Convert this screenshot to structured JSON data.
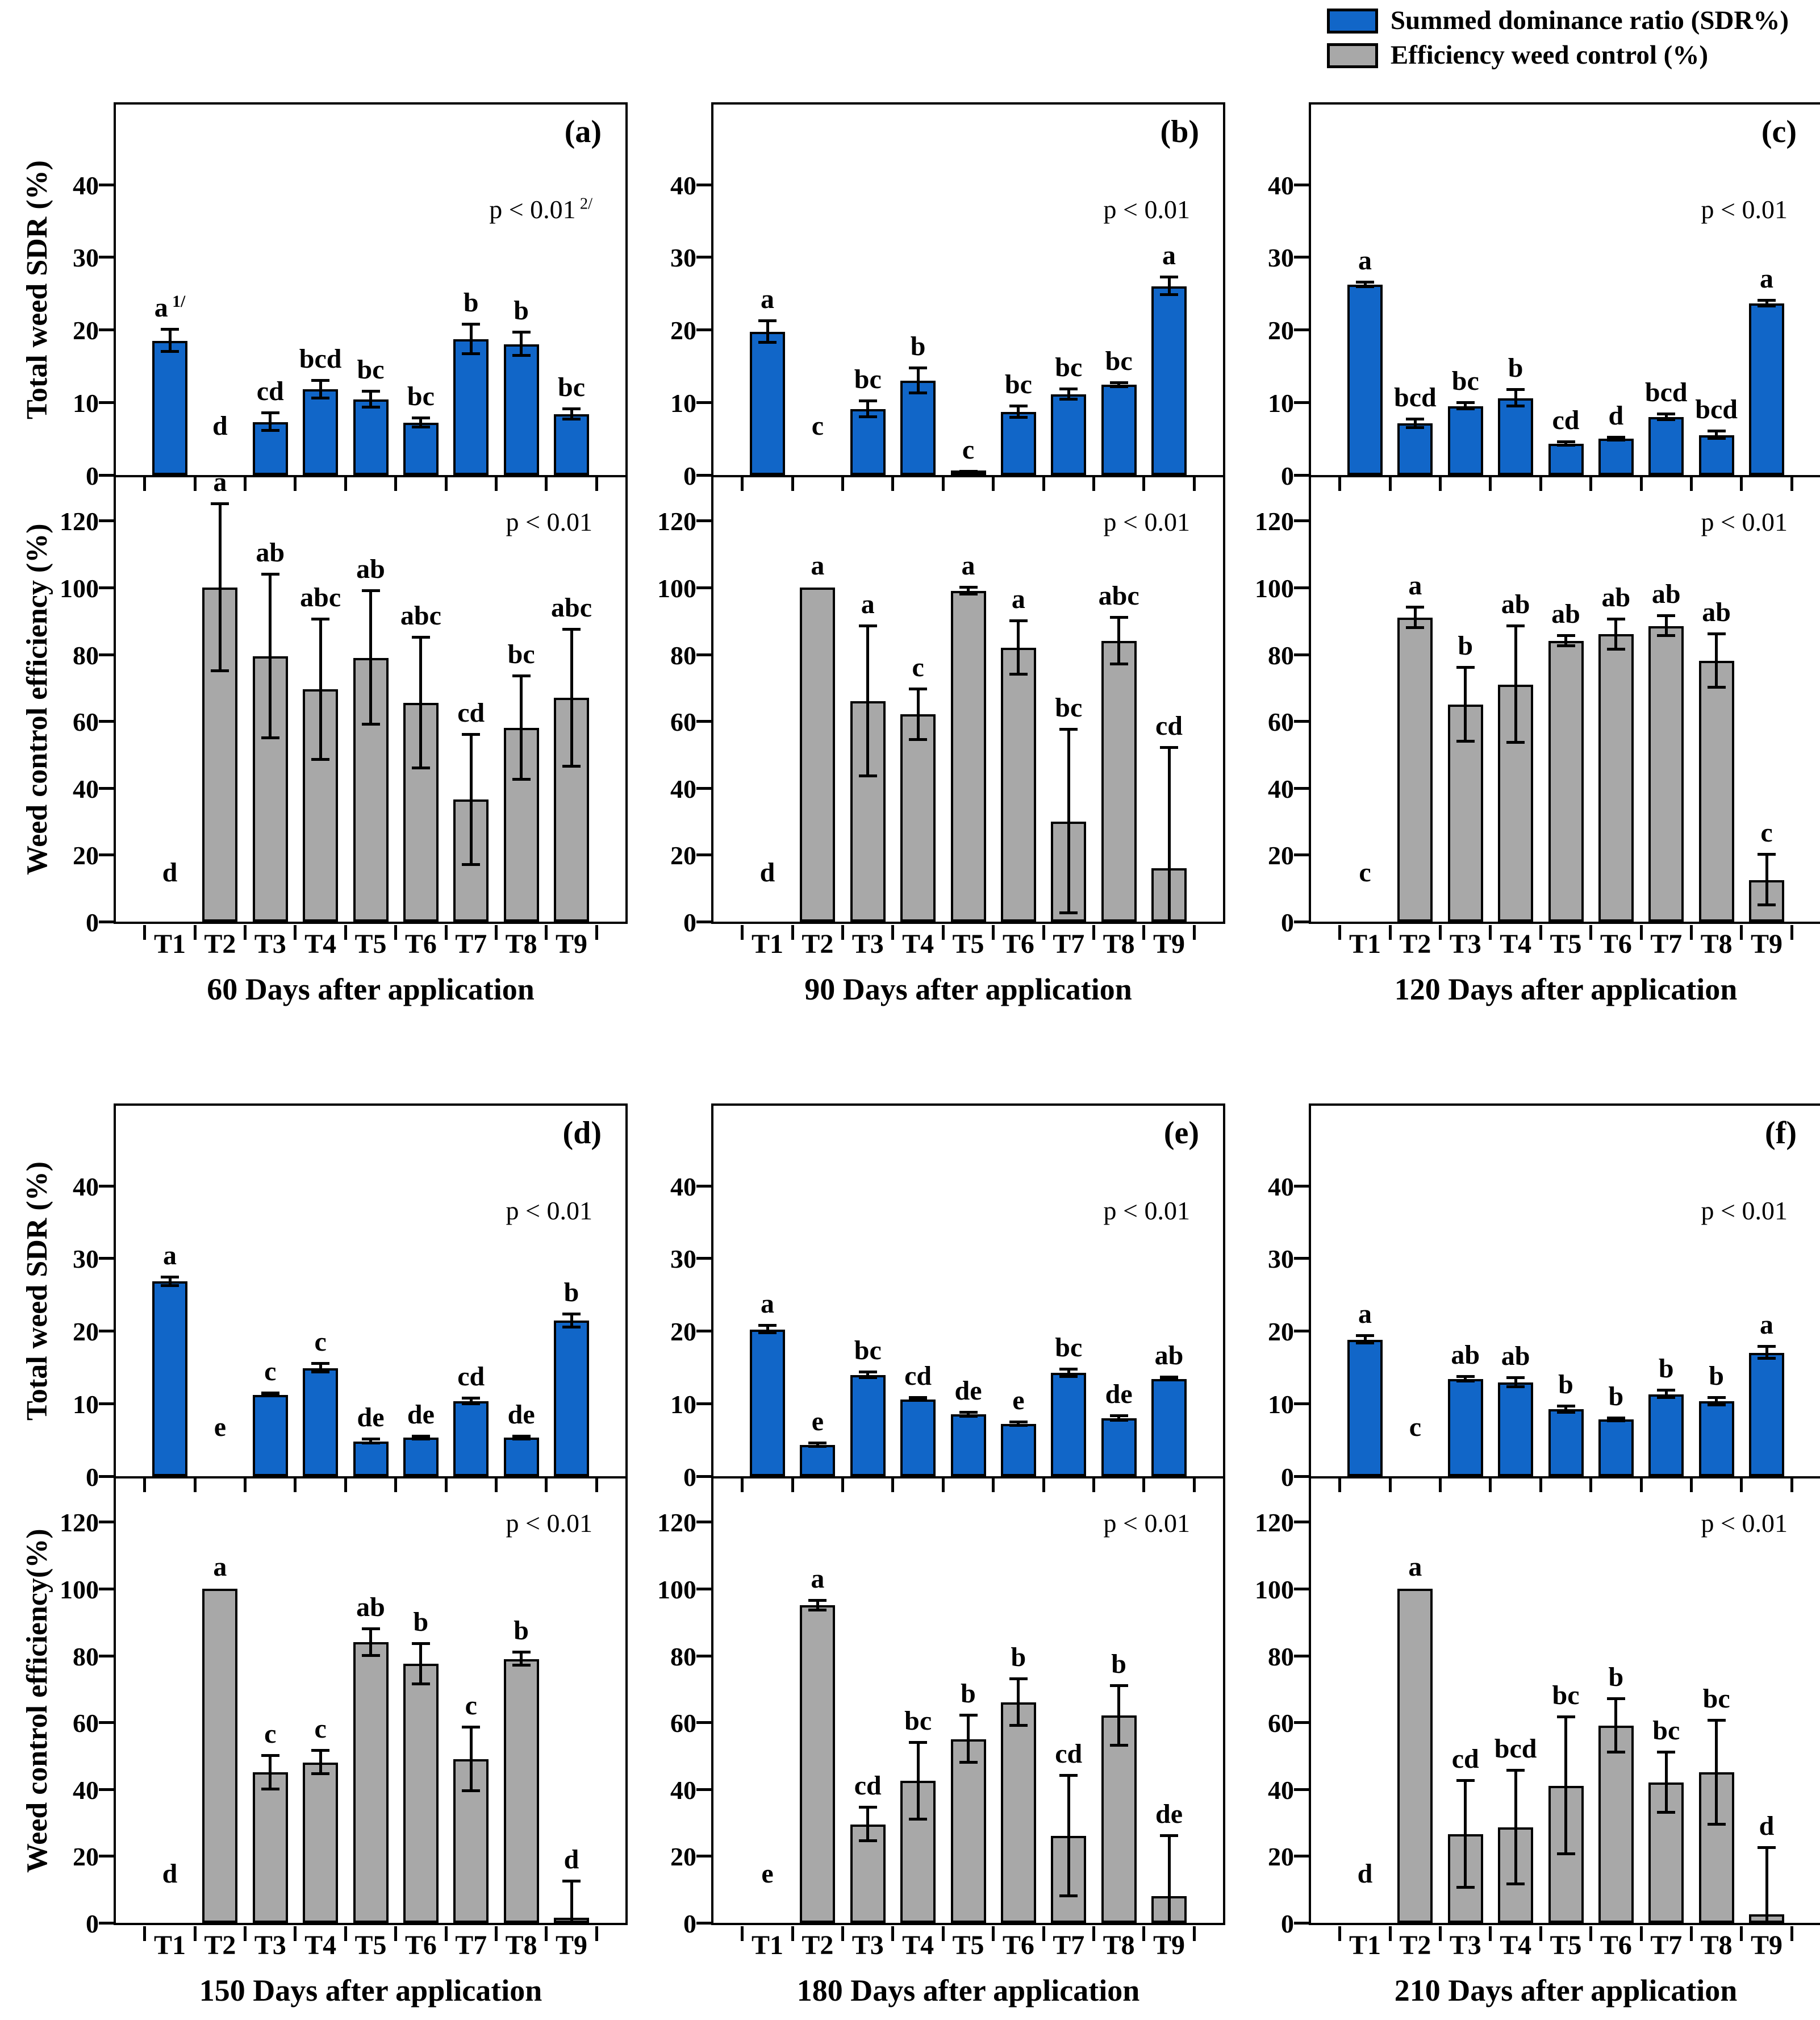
{
  "legend": {
    "position": "top-right",
    "items": [
      {
        "name": "sdr",
        "label": "Summed dominance ratio (SDR%)",
        "color": "#1166C8"
      },
      {
        "name": "wce",
        "label": "Efficiency weed control (%)",
        "color": "#A8A8A8"
      }
    ]
  },
  "colors": {
    "bar_blue": "#1166C8",
    "bar_gray": "#A8A8A8",
    "stroke": "#000000"
  },
  "categories": [
    "T1",
    "T2",
    "T3",
    "T4",
    "T5",
    "T6",
    "T7",
    "T8",
    "T9"
  ],
  "axis": {
    "row1_sdr_ylabel": "Total weed SDR (%)",
    "row1_wce_ylabel": "Weed control efficiency (%)",
    "row2_sdr_ylabel": "Total weed SDR (%)",
    "row2_wce_ylabel": "Weed control efficiency(%)",
    "sdr_ylim": [
      0,
      51
    ],
    "sdr_yticks": [
      0,
      10,
      20,
      30,
      40
    ],
    "wce_ylim": [
      0,
      133
    ],
    "wce_yticks": [
      0,
      20,
      40,
      60,
      80,
      100,
      120
    ]
  },
  "chart_data": [
    {
      "panel": "(a)",
      "caption": "60 Days after application",
      "sdr": {
        "type": "bar",
        "series_label": "Summed dominance ratio (SDR%)",
        "p_label": "p < 0.01",
        "p_sup": "2/",
        "values": [
          18.5,
          0,
          7.3,
          11.8,
          10.4,
          7.2,
          18.7,
          18.0,
          8.4
        ],
        "errors": [
          1.5,
          0,
          1.2,
          1.2,
          1.1,
          0.6,
          2.0,
          1.6,
          0.7
        ],
        "letters": [
          "a",
          "d",
          "cd",
          "bcd",
          "bc",
          "bc",
          "b",
          "b",
          "bc"
        ],
        "letter_sups": [
          "1/",
          null,
          null,
          null,
          null,
          null,
          null,
          null,
          null
        ]
      },
      "wce": {
        "type": "bar",
        "series_label": "Efficiency weed control (%)",
        "p_label": "p < 0.01",
        "values": [
          0,
          100,
          79.5,
          69.5,
          79,
          65.5,
          36.5,
          58,
          67
        ],
        "errors": [
          0,
          25,
          24.5,
          21,
          20,
          19.5,
          19.5,
          15.5,
          20.5
        ],
        "letters": [
          "d",
          "a",
          "ab",
          "abc",
          "ab",
          "abc",
          "cd",
          "bc",
          "abc"
        ]
      }
    },
    {
      "panel": "(b)",
      "caption": "90 Days after application",
      "sdr": {
        "type": "bar",
        "series_label": "Summed dominance ratio (SDR%)",
        "p_label": "p < 0.01",
        "values": [
          19.7,
          0,
          9.1,
          13.0,
          0.3,
          8.7,
          11.1,
          12.4,
          26.0
        ],
        "errors": [
          1.5,
          0,
          1.1,
          1.7,
          0.2,
          0.8,
          0.7,
          0.3,
          1.2
        ],
        "letters": [
          "a",
          "c",
          "bc",
          "b",
          "c",
          "bc",
          "bc",
          "bc",
          "a"
        ]
      },
      "wce": {
        "type": "bar",
        "series_label": "Efficiency weed control (%)",
        "p_label": "p < 0.01",
        "values": [
          0,
          100,
          66,
          62,
          99,
          82,
          30,
          84,
          16
        ],
        "errors": [
          0,
          0,
          22.5,
          7.5,
          1,
          8,
          27.5,
          7,
          36
        ],
        "letters": [
          "d",
          "a",
          "a",
          "c",
          "a",
          "a",
          "bc",
          "abc",
          "cd"
        ]
      }
    },
    {
      "panel": "(c)",
      "caption": "120 Days after application",
      "sdr": {
        "type": "bar",
        "series_label": "Summed dominance ratio (SDR%)",
        "p_label": "p < 0.01",
        "values": [
          26.2,
          7.1,
          9.5,
          10.6,
          4.3,
          5.0,
          8.0,
          5.5,
          23.6
        ],
        "errors": [
          0.3,
          0.6,
          0.4,
          1.1,
          0.2,
          0.2,
          0.4,
          0.5,
          0.4
        ],
        "letters": [
          "a",
          "bcd",
          "bc",
          "b",
          "cd",
          "d",
          "bcd",
          "bcd",
          "a"
        ]
      },
      "wce": {
        "type": "bar",
        "series_label": "Efficiency weed control (%)",
        "p_label": "p < 0.01",
        "values": [
          0,
          91,
          65,
          71,
          84,
          86,
          88.5,
          78,
          12.5
        ],
        "errors": [
          0,
          3,
          11,
          17.5,
          1.5,
          4.5,
          3,
          8,
          7.5
        ],
        "letters": [
          "c",
          "a",
          "b",
          "ab",
          "ab",
          "ab",
          "ab",
          "ab",
          "c"
        ]
      }
    },
    {
      "panel": "(d)",
      "caption": "150 Days after application",
      "sdr": {
        "type": "bar",
        "series_label": "Summed dominance ratio (SDR%)",
        "p_label": "p < 0.01",
        "values": [
          26.8,
          0,
          11.2,
          14.9,
          4.8,
          5.3,
          10.3,
          5.3,
          21.4
        ],
        "errors": [
          0.6,
          0,
          0.2,
          0.6,
          0.3,
          0.2,
          0.4,
          0.2,
          0.9
        ],
        "letters": [
          "a",
          "e",
          "c",
          "c",
          "de",
          "de",
          "cd",
          "de",
          "b"
        ]
      },
      "wce": {
        "type": "bar",
        "series_label": "Efficiency weed control (%)",
        "p_label": "p < 0.01",
        "values": [
          0,
          100,
          45,
          48,
          84,
          77.5,
          49,
          79,
          1.5
        ],
        "errors": [
          0,
          0,
          5,
          3.5,
          4,
          6,
          9.5,
          2,
          11
        ],
        "letters": [
          "d",
          "a",
          "c",
          "c",
          "ab",
          "b",
          "c",
          "b",
          "d"
        ]
      }
    },
    {
      "panel": "(e)",
      "caption": "180 Days after application",
      "sdr": {
        "type": "bar",
        "series_label": "Summed dominance ratio (SDR%)",
        "p_label": "p < 0.01",
        "values": [
          20.2,
          4.3,
          13.9,
          10.6,
          8.5,
          7.2,
          14.2,
          8.0,
          13.4
        ],
        "errors": [
          0.5,
          0.2,
          0.4,
          0.2,
          0.3,
          0.2,
          0.5,
          0.3,
          0.2
        ],
        "letters": [
          "a",
          "e",
          "bc",
          "cd",
          "de",
          "e",
          "bc",
          "de",
          "ab"
        ]
      },
      "wce": {
        "type": "bar",
        "series_label": "Efficiency weed control (%)",
        "p_label": "p < 0.01",
        "values": [
          0,
          95,
          29.5,
          42.5,
          55,
          66,
          26,
          62,
          8
        ],
        "errors": [
          0,
          1.5,
          5,
          11.5,
          7,
          7,
          18,
          9,
          18
        ],
        "letters": [
          "e",
          "a",
          "cd",
          "bc",
          "b",
          "b",
          "cd",
          "b",
          "de"
        ]
      }
    },
    {
      "panel": "(f)",
      "caption": "210 Days after application",
      "sdr": {
        "type": "bar",
        "series_label": "Summed dominance ratio (SDR%)",
        "p_label": "p < 0.01",
        "values": [
          18.8,
          0,
          13.4,
          12.9,
          9.2,
          7.8,
          11.3,
          10.3,
          17.0
        ],
        "errors": [
          0.5,
          0,
          0.3,
          0.6,
          0.4,
          0.2,
          0.5,
          0.5,
          0.8
        ],
        "letters": [
          "a",
          "c",
          "ab",
          "ab",
          "b",
          "b",
          "b",
          "b",
          "a"
        ]
      },
      "wce": {
        "type": "bar",
        "series_label": "Efficiency weed control (%)",
        "p_label": "p < 0.01",
        "values": [
          0,
          100,
          26.5,
          28.5,
          41,
          59,
          42,
          45,
          2.5
        ],
        "errors": [
          0,
          0,
          16,
          17,
          20.5,
          8,
          9,
          15.5,
          20
        ],
        "letters": [
          "d",
          "a",
          "cd",
          "bcd",
          "bc",
          "b",
          "bc",
          "bc",
          "d"
        ]
      }
    }
  ]
}
